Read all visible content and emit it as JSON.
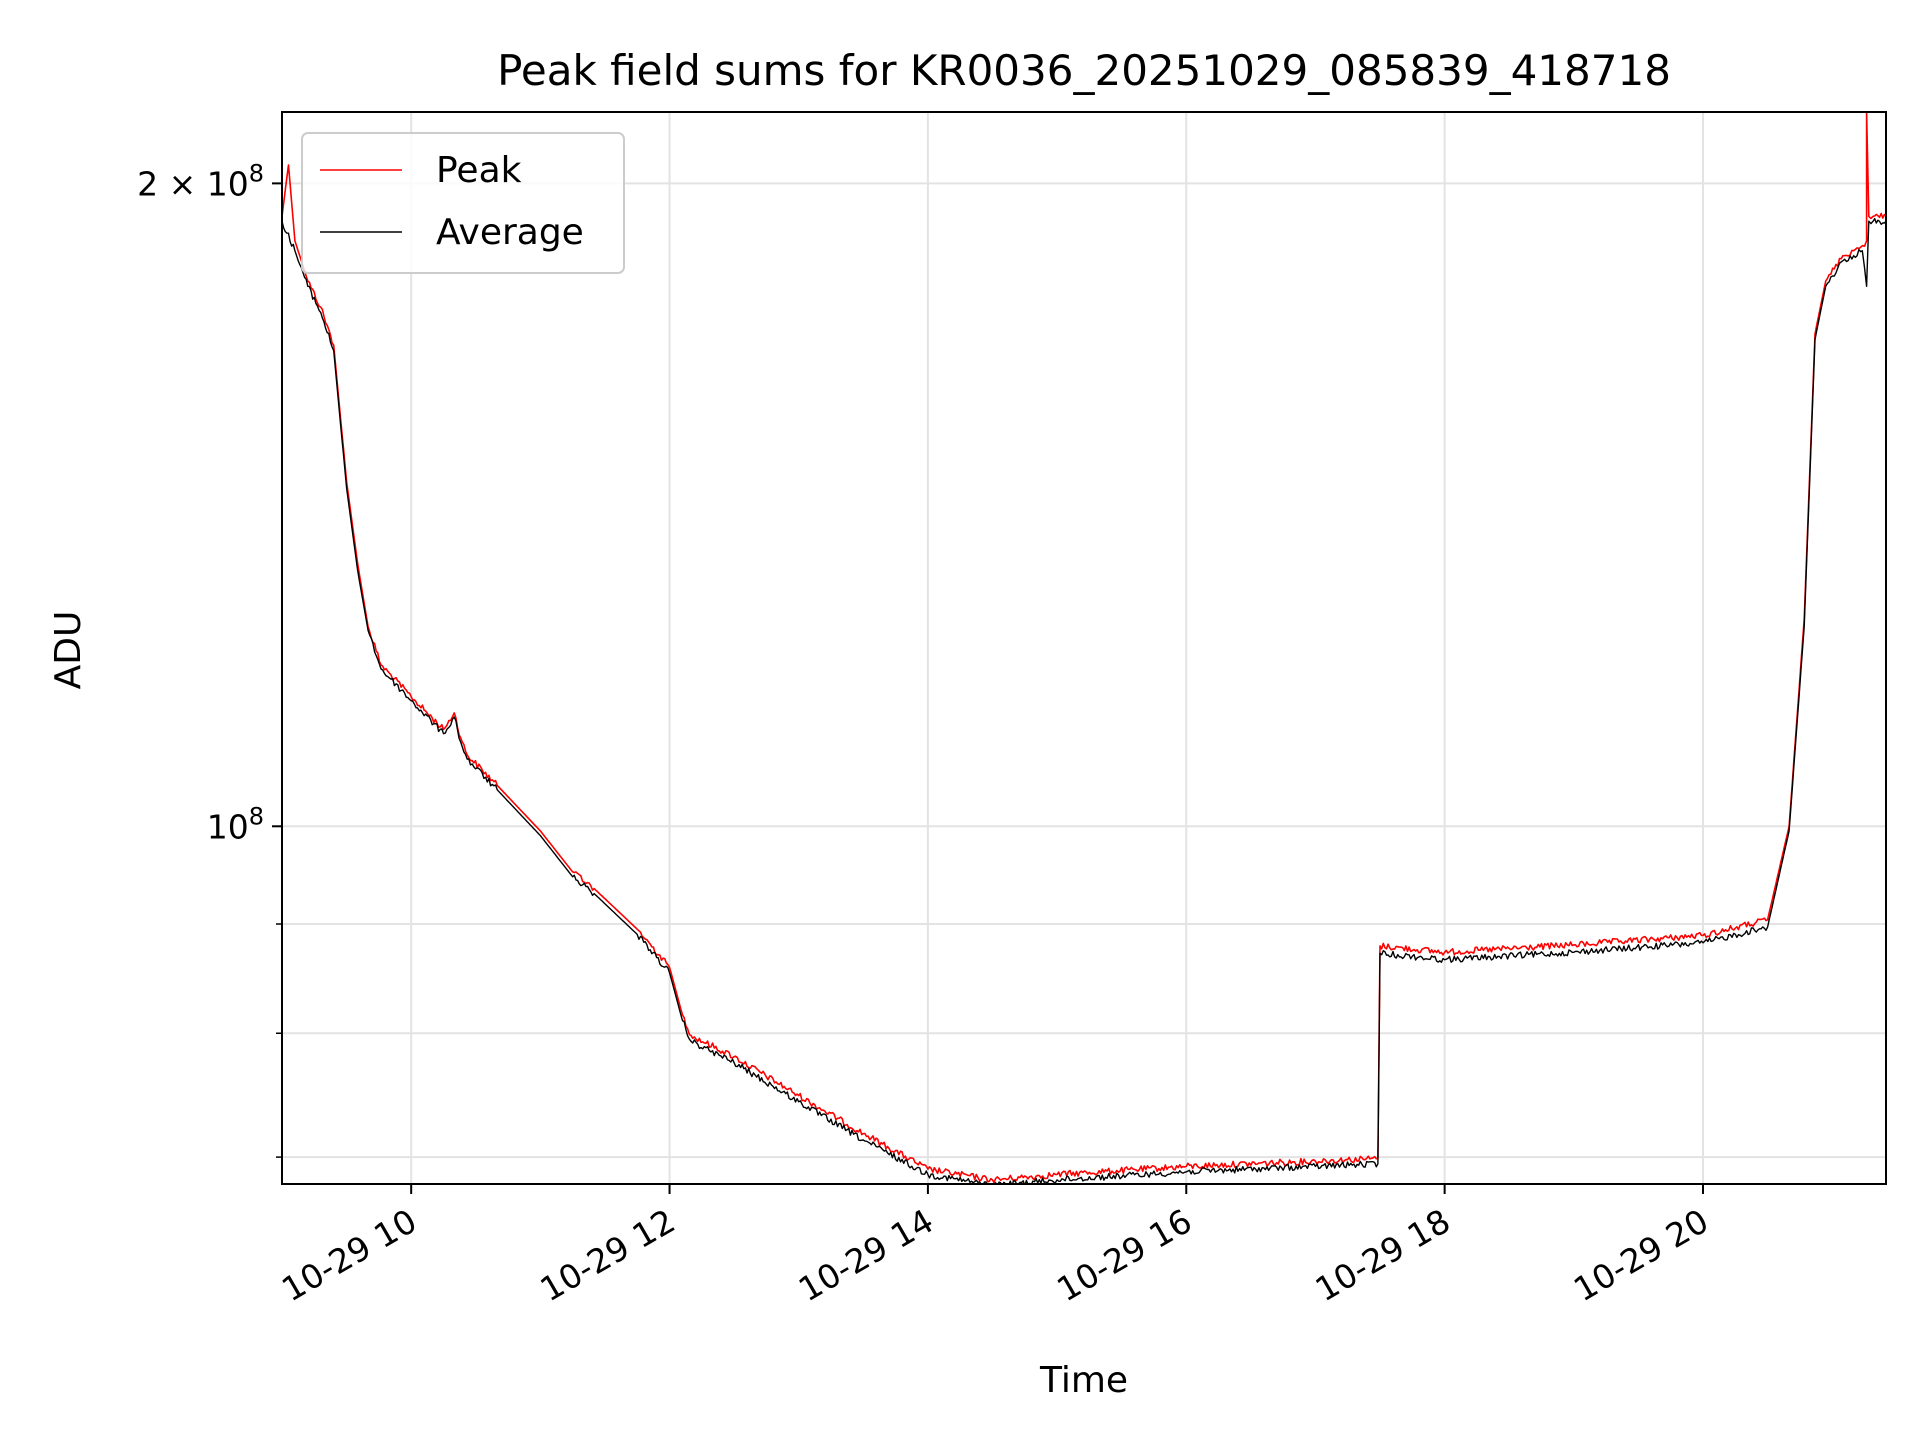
{
  "chart_data": {
    "type": "line",
    "title": "Peak field sums for KR0036_20251029_085839_418718",
    "xlabel": "Time",
    "ylabel": "ADU",
    "y_scale": "log",
    "xlim": [
      "2025-10-29 09:00",
      "2025-10-29 21:25"
    ],
    "ylim": [
      68000000,
      216000000
    ],
    "x_ticks": [
      "10-29 10",
      "10-29 12",
      "10-29 14",
      "10-29 16",
      "10-29 18",
      "10-29 20"
    ],
    "x_tick_values": [
      "2025-10-29 10:00",
      "2025-10-29 12:00",
      "2025-10-29 14:00",
      "2025-10-29 16:00",
      "2025-10-29 18:00",
      "2025-10-29 20:00"
    ],
    "y_ticks": [
      {
        "value": 200000000,
        "base": "2 × 10",
        "exp": "8"
      },
      {
        "value": 100000000,
        "base": "10",
        "exp": "8"
      }
    ],
    "y_minor_ticks": [
      70000000,
      80000000,
      90000000
    ],
    "grid": true,
    "legend": {
      "position": "upper-left"
    },
    "colors": {
      "Peak": "#ff0000",
      "Average": "#000000"
    },
    "series": [
      {
        "name": "Peak",
        "color": "#ff0000",
        "x": [
          "2025-10-29 09:00",
          "2025-10-29 09:03",
          "2025-10-29 09:06",
          "2025-10-29 09:12",
          "2025-10-29 09:18",
          "2025-10-29 09:24",
          "2025-10-29 09:30",
          "2025-10-29 09:35",
          "2025-10-29 09:40",
          "2025-10-29 09:46",
          "2025-10-29 10:00",
          "2025-10-29 10:15",
          "2025-10-29 10:20",
          "2025-10-29 10:23",
          "2025-10-29 10:26",
          "2025-10-29 10:40",
          "2025-10-29 11:00",
          "2025-10-29 11:15",
          "2025-10-29 11:25",
          "2025-10-29 11:45",
          "2025-10-29 12:00",
          "2025-10-29 12:06",
          "2025-10-29 12:10",
          "2025-10-29 12:30",
          "2025-10-29 13:00",
          "2025-10-29 13:30",
          "2025-10-29 14:00",
          "2025-10-29 14:30",
          "2025-10-29 15:00",
          "2025-10-29 16:00",
          "2025-10-29 17:00",
          "2025-10-29 17:29",
          "2025-10-29 17:30",
          "2025-10-29 18:00",
          "2025-10-29 19:00",
          "2025-10-29 20:00",
          "2025-10-29 20:30",
          "2025-10-29 20:40",
          "2025-10-29 20:47",
          "2025-10-29 20:52",
          "2025-10-29 20:57",
          "2025-10-29 21:05",
          "2025-10-29 21:10",
          "2025-10-29 21:14",
          "2025-10-29 21:16",
          "2025-10-29 21:16",
          "2025-10-29 21:17",
          "2025-10-29 21:19",
          "2025-10-29 21:25"
        ],
        "y": [
          193000000,
          204000000,
          188000000,
          180000000,
          175000000,
          168000000,
          145000000,
          133000000,
          124000000,
          119000000,
          115000000,
          111000000,
          113000000,
          110000000,
          108000000,
          104500000,
          99500000,
          95200000,
          93500000,
          89500000,
          85900000,
          81600000,
          79800000,
          78000000,
          74800000,
          71800000,
          69100000,
          68300000,
          68700000,
          69300000,
          69700000,
          69900000,
          87900000,
          87300000,
          88000000,
          88900000,
          90400000,
          100000000,
          125000000,
          170000000,
          180000000,
          185000000,
          186000000,
          187000000,
          188000000,
          216000000,
          193000000,
          193000000,
          193000000
        ]
      },
      {
        "name": "Average",
        "color": "#000000",
        "x": [
          "2025-10-29 09:00",
          "2025-10-29 09:06",
          "2025-10-29 09:12",
          "2025-10-29 09:18",
          "2025-10-29 09:24",
          "2025-10-29 09:30",
          "2025-10-29 09:35",
          "2025-10-29 09:40",
          "2025-10-29 09:46",
          "2025-10-29 10:00",
          "2025-10-29 10:15",
          "2025-10-29 10:20",
          "2025-10-29 10:23",
          "2025-10-29 10:26",
          "2025-10-29 10:40",
          "2025-10-29 11:00",
          "2025-10-29 11:15",
          "2025-10-29 11:25",
          "2025-10-29 11:45",
          "2025-10-29 12:00",
          "2025-10-29 12:06",
          "2025-10-29 12:10",
          "2025-10-29 12:30",
          "2025-10-29 13:00",
          "2025-10-29 13:30",
          "2025-10-29 14:00",
          "2025-10-29 14:30",
          "2025-10-29 15:00",
          "2025-10-29 16:00",
          "2025-10-29 17:00",
          "2025-10-29 17:29",
          "2025-10-29 17:30",
          "2025-10-29 18:00",
          "2025-10-29 19:00",
          "2025-10-29 20:00",
          "2025-10-29 20:30",
          "2025-10-29 20:40",
          "2025-10-29 20:47",
          "2025-10-29 20:52",
          "2025-10-29 20:57",
          "2025-10-29 21:05",
          "2025-10-29 21:10",
          "2025-10-29 21:14",
          "2025-10-29 21:16",
          "2025-10-29 21:17",
          "2025-10-29 21:19",
          "2025-10-29 21:25"
        ],
        "y": [
          192000000,
          186000000,
          179000000,
          174000000,
          167000000,
          144000000,
          132000000,
          123500000,
          118500000,
          114500000,
          110500000,
          112500000,
          109500000,
          107500000,
          104000000,
          99000000,
          94700000,
          93000000,
          89000000,
          85400000,
          81100000,
          79300000,
          77500000,
          74300000,
          71300000,
          68700000,
          67900000,
          68300000,
          68900000,
          69300000,
          69500000,
          87200000,
          86600000,
          87300000,
          88200000,
          89700000,
          99500000,
          124000000,
          169000000,
          179000000,
          184000000,
          185000000,
          186000000,
          179000000,
          192000000,
          192000000,
          192000000
        ]
      }
    ]
  }
}
